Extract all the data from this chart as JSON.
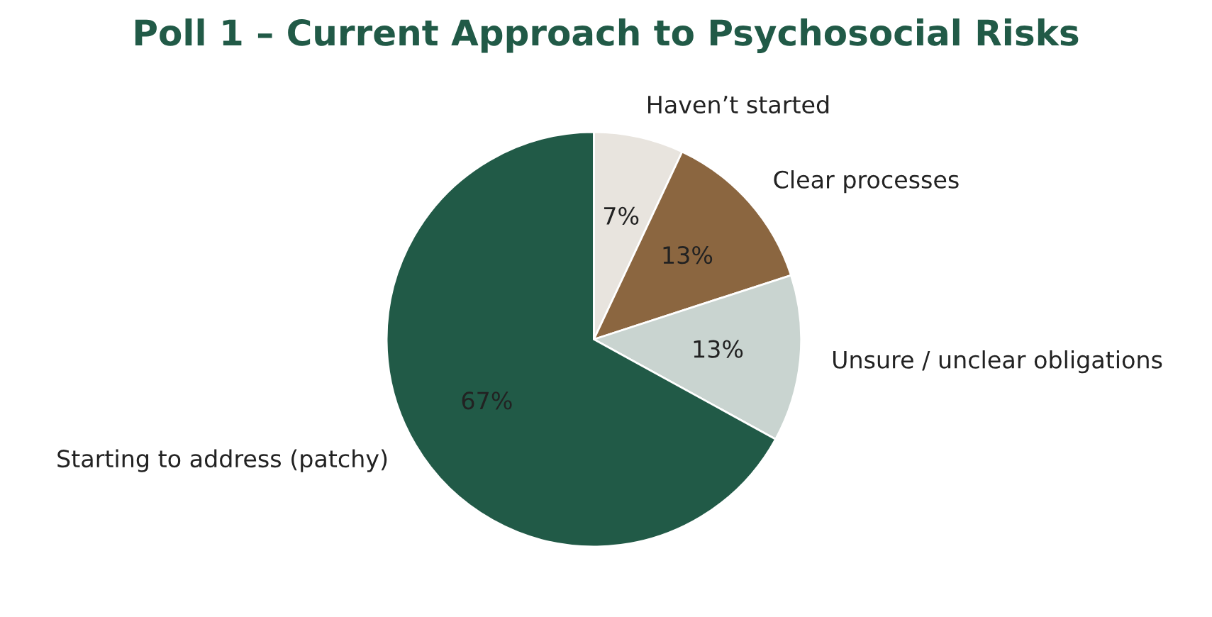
{
  "chart_data": {
    "type": "pie",
    "title": "Poll 1 – Current Approach to Psychosocial Risks",
    "categories": [
      "Haven’t started",
      "Clear processes",
      "Unsure / unclear obligations",
      "Starting to address (patchy)"
    ],
    "values": [
      7,
      13,
      13,
      67
    ],
    "value_labels": [
      "7%",
      "13%",
      "13%",
      "67%"
    ],
    "colors": [
      "#e8e4de",
      "#8b6640",
      "#c9d4d0",
      "#215a47"
    ]
  }
}
